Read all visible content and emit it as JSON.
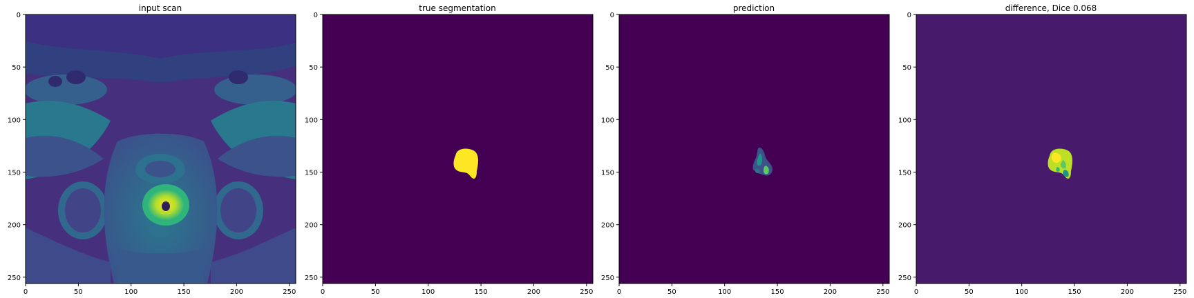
{
  "figure": {
    "panels": [
      {
        "title": "input scan",
        "image": "mri-input-scan",
        "x_ticks": [
          "0",
          "50",
          "100",
          "150",
          "200",
          "250"
        ],
        "y_ticks": [
          "0",
          "50",
          "100",
          "150",
          "200",
          "250"
        ]
      },
      {
        "title": "true segmentation",
        "image": "segmentation-mask",
        "x_ticks": [
          "0",
          "50",
          "100",
          "150",
          "200",
          "250"
        ],
        "y_ticks": [
          "0",
          "50",
          "100",
          "150",
          "200",
          "250"
        ]
      },
      {
        "title": "prediction",
        "image": "prediction-mask",
        "x_ticks": [
          "0",
          "50",
          "100",
          "150",
          "200",
          "250"
        ],
        "y_ticks": [
          "0",
          "50",
          "100",
          "150",
          "200",
          "250"
        ]
      },
      {
        "title": "difference, Dice 0.068",
        "image": "difference-map",
        "x_ticks": [
          "0",
          "50",
          "100",
          "150",
          "200",
          "250"
        ],
        "y_ticks": [
          "0",
          "50",
          "100",
          "150",
          "200",
          "250"
        ]
      }
    ],
    "colors": {
      "viridis_dark": "#440154",
      "viridis_dark_diff": "#481a6c",
      "viridis_teal": "#21918c",
      "viridis_green": "#3bbb75",
      "viridis_yellow": "#fde725"
    }
  }
}
